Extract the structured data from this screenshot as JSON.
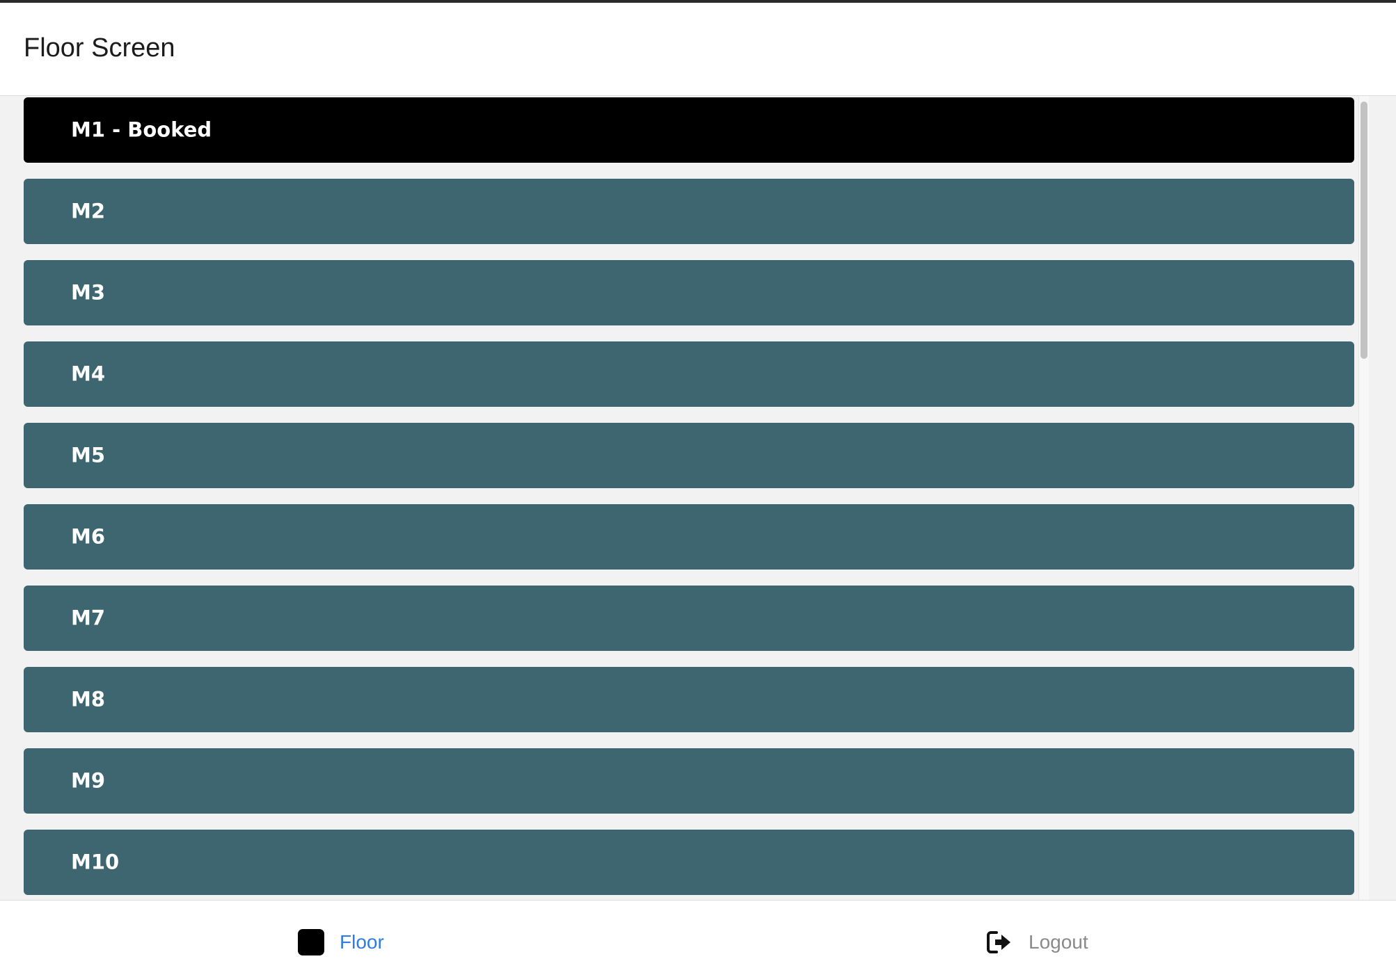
{
  "header": {
    "title": "Floor Screen"
  },
  "rooms": [
    {
      "label": "M1 - Booked",
      "status": "booked"
    },
    {
      "label": "M2",
      "status": "available"
    },
    {
      "label": "M3",
      "status": "available"
    },
    {
      "label": "M4",
      "status": "available"
    },
    {
      "label": "M5",
      "status": "available"
    },
    {
      "label": "M6",
      "status": "available"
    },
    {
      "label": "M7",
      "status": "available"
    },
    {
      "label": "M8",
      "status": "available"
    },
    {
      "label": "M9",
      "status": "available"
    },
    {
      "label": "M10",
      "status": "available"
    }
  ],
  "colors": {
    "booked": "#000000",
    "available": "#3e6670",
    "active_nav": "#2f7be6",
    "inactive_nav": "#8a8a8a"
  },
  "bottom_nav": {
    "floor_label": "Floor",
    "floor_icon": "square-icon",
    "logout_label": "Logout",
    "logout_icon": "sign-out-icon"
  }
}
